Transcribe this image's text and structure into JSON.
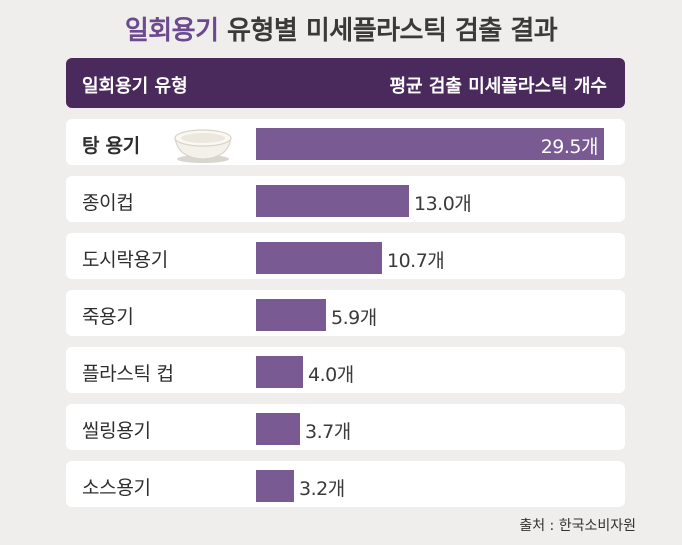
{
  "title": {
    "accent": "일회용기",
    "rest": " 유형별 미세플라스틱 검출 결과"
  },
  "header": {
    "left": "일회용기 유형",
    "right": "평균 검출 미세플라스틱 개수"
  },
  "source": "출처 : 한국소비자원",
  "colors": {
    "bar": "#7a5a92",
    "header": "#4a2a5c",
    "accent": "#6b4a8e"
  },
  "chart_data": {
    "type": "bar",
    "orientation": "horizontal",
    "categories": [
      "탕 용기",
      "종이컵",
      "도시락용기",
      "죽용기",
      "플라스틱 컵",
      "씰링용기",
      "소스용기"
    ],
    "values": [
      29.5,
      13.0,
      10.7,
      5.9,
      4.0,
      3.7,
      3.2
    ],
    "value_labels": [
      "29.5개",
      "13.0개",
      "10.7개",
      "5.9개",
      "4.0개",
      "3.7개",
      "3.2개"
    ],
    "xlim": [
      0,
      29.5
    ]
  }
}
